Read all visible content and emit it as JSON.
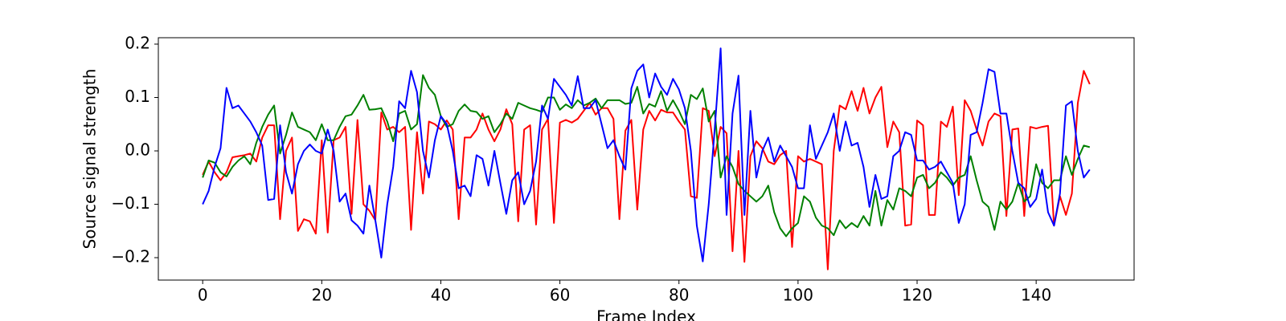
{
  "chart_data": {
    "type": "line",
    "xlabel": "Frame Index",
    "ylabel": "Source signal strength",
    "x": [
      0,
      1,
      2,
      3,
      4,
      5,
      6,
      7,
      8,
      9,
      10,
      11,
      12,
      13,
      14,
      15,
      16,
      17,
      18,
      19,
      20,
      21,
      22,
      23,
      24,
      25,
      26,
      27,
      28,
      29,
      30,
      31,
      32,
      33,
      34,
      35,
      36,
      37,
      38,
      39,
      40,
      41,
      42,
      43,
      44,
      45,
      46,
      47,
      48,
      49,
      50,
      51,
      52,
      53,
      54,
      55,
      56,
      57,
      58,
      59,
      60,
      61,
      62,
      63,
      64,
      65,
      66,
      67,
      68,
      69,
      70,
      71,
      72,
      73,
      74,
      75,
      76,
      77,
      78,
      79,
      80,
      81,
      82,
      83,
      84,
      85,
      86,
      87,
      88,
      89,
      90,
      91,
      92,
      93,
      94,
      95,
      96,
      97,
      98,
      99,
      100,
      101,
      102,
      103,
      104,
      105,
      106,
      107,
      108,
      109,
      110,
      111,
      112,
      113,
      114,
      115,
      116,
      117,
      118,
      119,
      120,
      121,
      122,
      123,
      124,
      125,
      126,
      127,
      128,
      129,
      130,
      131,
      132,
      133,
      134,
      135,
      136,
      137,
      138,
      139,
      140,
      141,
      142,
      143,
      144,
      145,
      146,
      147,
      148,
      149
    ],
    "series": [
      {
        "color": "#ff0000",
        "values": [
          -0.045,
          -0.02,
          -0.04,
          -0.055,
          -0.04,
          -0.012,
          -0.01,
          -0.008,
          -0.005,
          -0.02,
          0.025,
          0.048,
          0.048,
          -0.128,
          0.0,
          0.025,
          -0.15,
          -0.128,
          -0.132,
          -0.155,
          0.02,
          -0.153,
          0.02,
          0.025,
          0.045,
          -0.118,
          0.058,
          -0.1,
          -0.112,
          -0.13,
          0.072,
          0.04,
          0.045,
          0.035,
          0.045,
          -0.148,
          0.035,
          -0.08,
          0.055,
          0.05,
          0.04,
          0.057,
          0.04,
          -0.128,
          0.025,
          0.025,
          0.04,
          0.07,
          0.04,
          0.018,
          0.04,
          0.078,
          0.05,
          -0.132,
          0.04,
          0.048,
          -0.138,
          0.04,
          0.06,
          -0.135,
          0.053,
          0.058,
          0.053,
          0.06,
          0.075,
          0.09,
          0.068,
          0.08,
          0.08,
          0.06,
          -0.128,
          0.038,
          0.058,
          -0.11,
          0.04,
          0.075,
          0.057,
          0.077,
          0.072,
          0.072,
          0.055,
          0.04,
          -0.085,
          -0.088,
          0.08,
          0.075,
          -0.01,
          0.045,
          0.033,
          -0.188,
          0.0,
          -0.208,
          -0.01,
          0.018,
          0.005,
          -0.02,
          -0.025,
          -0.008,
          0.0,
          -0.18,
          -0.01,
          -0.02,
          -0.015,
          -0.02,
          -0.025,
          -0.222,
          0.0,
          0.085,
          0.078,
          0.112,
          0.075,
          0.118,
          0.07,
          0.1,
          0.12,
          0.007,
          0.055,
          0.035,
          -0.14,
          -0.138,
          0.057,
          0.048,
          -0.12,
          -0.12,
          0.055,
          0.045,
          0.083,
          -0.083,
          0.095,
          0.075,
          0.04,
          0.01,
          0.055,
          0.07,
          0.065,
          -0.122,
          0.04,
          0.042,
          -0.122,
          0.045,
          0.042,
          0.045,
          0.047,
          -0.14,
          -0.085,
          -0.12,
          -0.08,
          0.09,
          0.15,
          0.125
        ]
      },
      {
        "color": "#008000",
        "values": [
          -0.05,
          -0.018,
          -0.022,
          -0.04,
          -0.048,
          -0.03,
          -0.018,
          -0.01,
          -0.025,
          0.015,
          0.045,
          0.068,
          0.085,
          -0.005,
          0.03,
          0.072,
          0.045,
          0.04,
          0.035,
          0.02,
          0.05,
          0.02,
          0.02,
          0.045,
          0.065,
          0.068,
          0.085,
          0.105,
          0.077,
          0.078,
          0.08,
          0.055,
          0.018,
          0.07,
          0.075,
          0.04,
          0.05,
          0.142,
          0.118,
          0.105,
          0.065,
          0.045,
          0.05,
          0.075,
          0.087,
          0.075,
          0.073,
          0.06,
          0.065,
          0.035,
          0.05,
          0.07,
          0.06,
          0.09,
          0.085,
          0.08,
          0.077,
          0.073,
          0.1,
          0.1,
          0.077,
          0.087,
          0.08,
          0.095,
          0.085,
          0.09,
          0.098,
          0.08,
          0.095,
          0.095,
          0.095,
          0.088,
          0.09,
          0.12,
          0.07,
          0.088,
          0.083,
          0.112,
          0.075,
          0.095,
          0.075,
          0.05,
          0.105,
          0.097,
          0.117,
          0.055,
          0.075,
          -0.05,
          -0.01,
          -0.03,
          -0.062,
          -0.075,
          -0.085,
          -0.095,
          -0.085,
          -0.065,
          -0.115,
          -0.145,
          -0.16,
          -0.145,
          -0.135,
          -0.085,
          -0.095,
          -0.125,
          -0.14,
          -0.145,
          -0.158,
          -0.13,
          -0.145,
          -0.135,
          -0.143,
          -0.122,
          -0.14,
          -0.075,
          -0.14,
          -0.092,
          -0.11,
          -0.07,
          -0.075,
          -0.085,
          -0.05,
          -0.045,
          -0.07,
          -0.06,
          -0.04,
          -0.05,
          -0.065,
          -0.05,
          -0.045,
          -0.01,
          -0.055,
          -0.095,
          -0.105,
          -0.148,
          -0.095,
          -0.11,
          -0.095,
          -0.06,
          -0.095,
          -0.085,
          -0.025,
          -0.06,
          -0.07,
          -0.055,
          -0.055,
          -0.01,
          -0.045,
          -0.015,
          0.01,
          0.007
        ]
      },
      {
        "color": "#0000ff",
        "values": [
          -0.1,
          -0.075,
          -0.03,
          0.005,
          0.118,
          0.08,
          0.085,
          0.07,
          0.055,
          0.035,
          0.01,
          -0.092,
          -0.09,
          0.048,
          -0.04,
          -0.08,
          -0.025,
          0.0,
          0.012,
          0.0,
          -0.005,
          0.04,
          0.0,
          -0.095,
          -0.08,
          -0.13,
          -0.14,
          -0.155,
          -0.065,
          -0.13,
          -0.2,
          -0.1,
          -0.03,
          0.093,
          0.08,
          0.15,
          0.11,
          0.0,
          -0.05,
          0.02,
          0.065,
          0.05,
          0.0,
          -0.07,
          -0.065,
          -0.085,
          -0.008,
          -0.015,
          -0.065,
          0.0,
          -0.06,
          -0.118,
          -0.055,
          -0.04,
          -0.1,
          -0.075,
          -0.02,
          0.085,
          0.06,
          0.135,
          0.12,
          0.105,
          0.085,
          0.14,
          0.08,
          0.08,
          0.095,
          0.05,
          0.005,
          0.02,
          -0.01,
          -0.035,
          0.117,
          0.15,
          0.162,
          0.1,
          0.145,
          0.12,
          0.105,
          0.135,
          0.115,
          0.08,
          0.0,
          -0.14,
          -0.207,
          -0.1,
          0.04,
          0.192,
          -0.12,
          0.07,
          0.141,
          -0.12,
          0.075,
          -0.05,
          0.0,
          0.025,
          -0.02,
          0.01,
          -0.01,
          -0.03,
          -0.07,
          -0.07,
          0.048,
          -0.015,
          0.01,
          0.035,
          0.07,
          0.0,
          0.055,
          0.01,
          0.015,
          -0.03,
          -0.105,
          -0.045,
          -0.09,
          -0.085,
          -0.01,
          0.0,
          0.035,
          0.03,
          -0.018,
          -0.018,
          -0.035,
          -0.03,
          -0.02,
          -0.04,
          -0.06,
          -0.135,
          -0.1,
          0.03,
          0.035,
          0.09,
          0.153,
          0.148,
          0.07,
          0.07,
          0.0,
          -0.06,
          -0.07,
          -0.105,
          -0.09,
          -0.035,
          -0.115,
          -0.14,
          -0.08,
          0.085,
          0.093,
          0.0,
          -0.05,
          -0.035
        ]
      }
    ],
    "xlim": [
      -7.45,
      156.45
    ],
    "xticks": [
      0,
      20,
      40,
      60,
      80,
      100,
      120,
      140
    ],
    "ylim": [
      -0.242,
      0.212
    ],
    "yticks": [
      {
        "value": -0.2,
        "label": "−0.2"
      },
      {
        "value": -0.1,
        "label": "−0.1"
      },
      {
        "value": 0.0,
        "label": "0.0"
      },
      0.1,
      0.2
    ]
  }
}
